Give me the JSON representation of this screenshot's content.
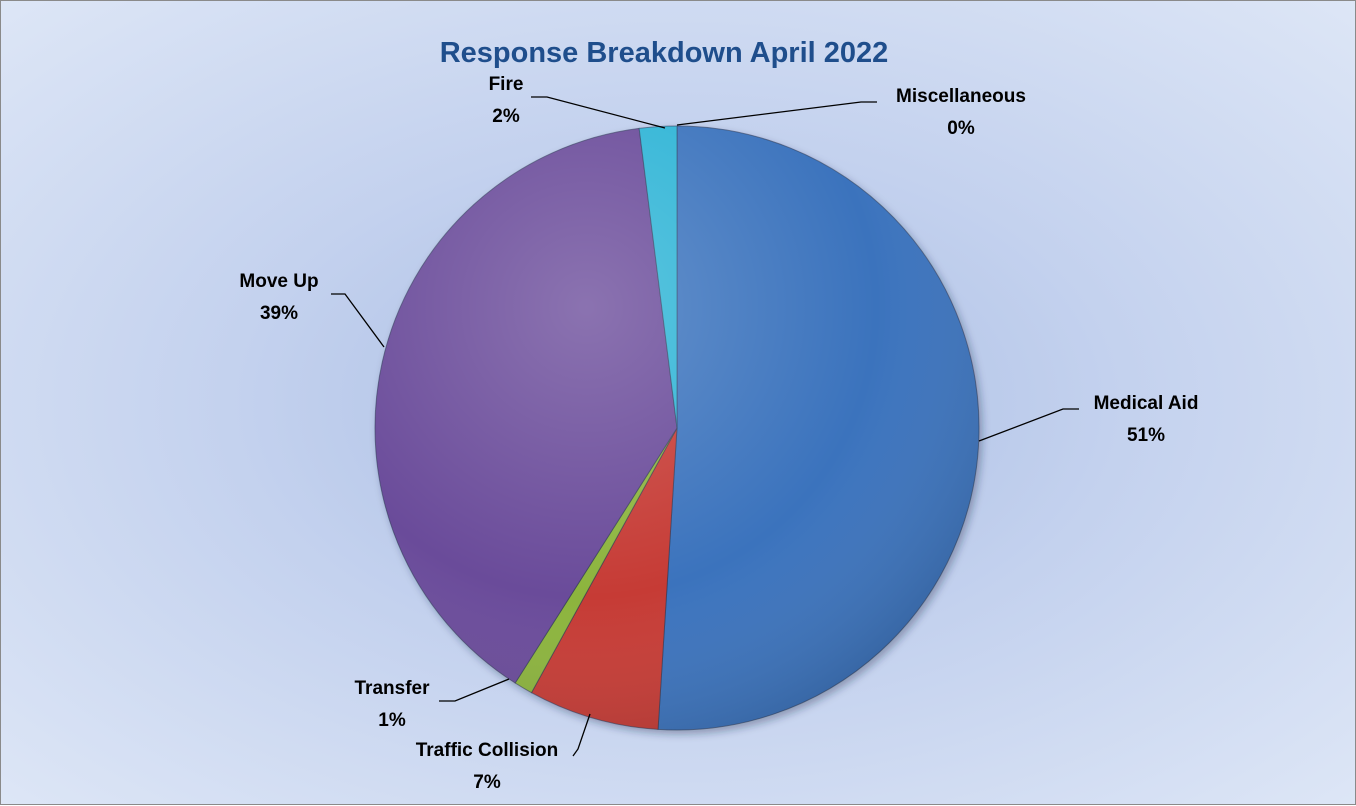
{
  "chart_data": {
    "type": "pie",
    "title": "Response Breakdown April 2022",
    "slices": [
      {
        "name": "Medical Aid",
        "value": 51,
        "label": "51%",
        "color": "#3a73bd"
      },
      {
        "name": "Traffic Collision",
        "value": 7,
        "label": "7%",
        "color": "#c63b36"
      },
      {
        "name": "Transfer",
        "value": 1,
        "label": "1%",
        "color": "#8cb43c"
      },
      {
        "name": "Move Up",
        "value": 39,
        "label": "39%",
        "color": "#6a4c9a"
      },
      {
        "name": "Fire",
        "value": 2,
        "label": "2%",
        "color": "#2fb4d6"
      },
      {
        "name": "Miscellaneous",
        "value": 0,
        "label": "0%",
        "color": "#e0852d"
      }
    ],
    "start_angle_deg": 0,
    "direction": "clockwise",
    "legend": "none",
    "data_labels": "category-and-percentage-outside-with-leader-lines"
  }
}
